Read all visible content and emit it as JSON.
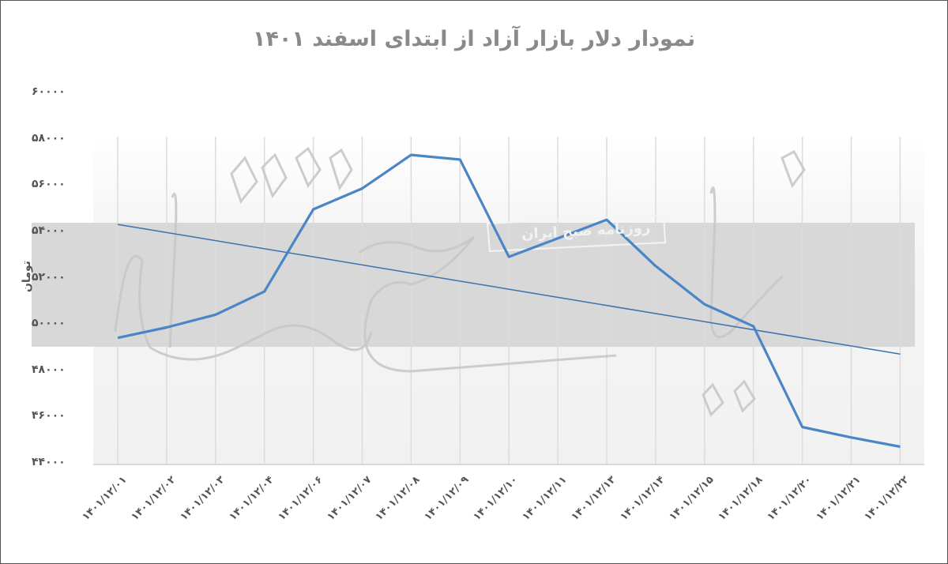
{
  "chart_data": {
    "type": "line",
    "title": "نمودار دلار بازار آزاد از ابتدای اسفند ۱۴۰۱",
    "xlabel": "",
    "ylabel": "تومان",
    "ylim": [
      44000,
      60000
    ],
    "y_ticks": [
      "۶۰۰۰۰",
      "۵۸۰۰۰",
      "۵۶۰۰۰",
      "۵۴۰۰۰",
      "۵۲۰۰۰",
      "۵۰۰۰۰",
      "۴۸۰۰۰",
      "۴۶۰۰۰",
      "۴۴۰۰۰"
    ],
    "y_tick_values": [
      60000,
      58000,
      56000,
      54000,
      52000,
      50000,
      48000,
      46000,
      44000
    ],
    "categories": [
      "۱۴۰۱/۱۲/۰۱",
      "۱۴۰۱/۱۲/۰۲",
      "۱۴۰۱/۱۲/۰۳",
      "۱۴۰۱/۱۲/۰۴",
      "۱۴۰۱/۱۲/۰۶",
      "۱۴۰۱/۱۲/۰۷",
      "۱۴۰۱/۱۲/۰۸",
      "۱۴۰۱/۱۲/۰۹",
      "۱۴۰۱/۱۲/۱۰",
      "۱۴۰۱/۱۲/۱۱",
      "۱۴۰۱/۱۲/۱۳",
      "۱۴۰۱/۱۲/۱۴",
      "۱۴۰۱/۱۲/۱۵",
      "۱۴۰۱/۱۲/۱۸",
      "۱۴۰۱/۱۲/۲۰",
      "۱۴۰۱/۱۲/۲۱",
      "۱۴۰۱/۱۲/۲۲"
    ],
    "series": [
      {
        "name": "دلار بازار آزاد",
        "color": "#4a86c5",
        "values": [
          49400,
          49850,
          50400,
          51400,
          54950,
          55850,
          57300,
          57100,
          52900,
          53700,
          54500,
          52500,
          50850,
          49900,
          45550,
          45100,
          44700
        ]
      },
      {
        "name": "خط روند",
        "type": "linear-trendline",
        "color": "#3b72ad",
        "start": 54300,
        "end": 48700
      }
    ],
    "grid": {
      "vertical": true,
      "horizontal": false
    },
    "legend": "none"
  },
  "watermark": {
    "brand_text": "روزنامه صبح ایران",
    "logo_text": "دنیای اقتصاد"
  }
}
